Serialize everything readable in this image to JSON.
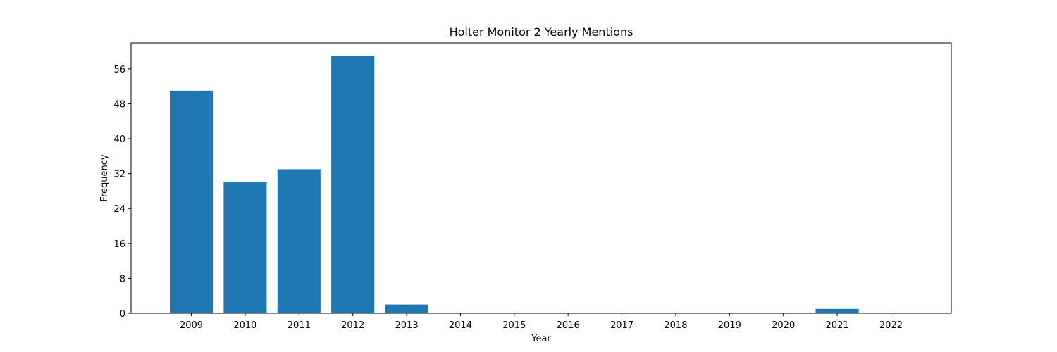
{
  "chart_data": {
    "type": "bar",
    "title": "Holter Monitor 2 Yearly Mentions",
    "xlabel": "Year",
    "ylabel": "Frequency",
    "categories": [
      "2009",
      "2010",
      "2011",
      "2012",
      "2013",
      "2014",
      "2015",
      "2016",
      "2017",
      "2018",
      "2019",
      "2020",
      "2021",
      "2022"
    ],
    "values": [
      51,
      30,
      33,
      59,
      2,
      0,
      0,
      0,
      0,
      0,
      0,
      0,
      1,
      0
    ],
    "ylim": [
      0,
      61.95
    ],
    "yticks": [
      0,
      8,
      16,
      24,
      32,
      40,
      48,
      56
    ],
    "bar_color": "#1f77b4",
    "grid": false,
    "legend": "none"
  }
}
